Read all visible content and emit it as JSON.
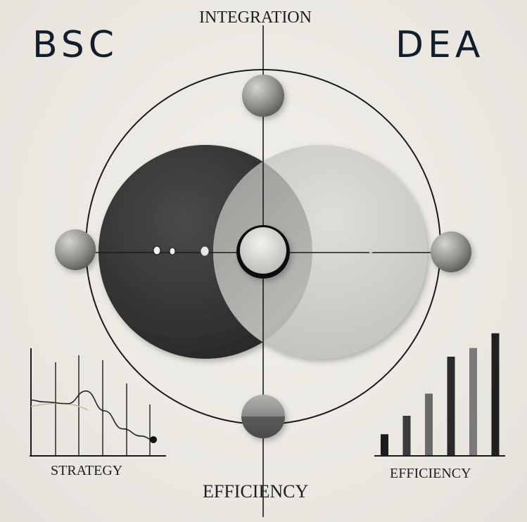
{
  "titles": {
    "left": "BSC",
    "right": "DEA"
  },
  "axis_labels": {
    "top": "INTEGRATION",
    "bottom": "EFFICIENCY"
  },
  "chart_labels": {
    "left": "STRATEGY",
    "right": "EFFICIENCY"
  },
  "left_chart": {
    "curve": [
      [
        0,
        0.62
      ],
      [
        0.1,
        0.6
      ],
      [
        0.3,
        0.58
      ],
      [
        0.45,
        0.72
      ],
      [
        0.6,
        0.5
      ],
      [
        0.75,
        0.3
      ],
      [
        0.9,
        0.22
      ],
      [
        1.0,
        0.18
      ]
    ]
  },
  "right_chart": {
    "bars": [
      0.17,
      0.32,
      0.5,
      0.8,
      0.87,
      0.99
    ],
    "colors": [
      "#1c1c1c",
      "#3a3a3a",
      "#6a6a6a",
      "#2a2a2a",
      "#7a7a7a",
      "#1f1f1f"
    ]
  },
  "colors": {
    "dark_circle": "#2e2e2e",
    "light_circle": "#cfcfcc",
    "line": "#1a1a1a",
    "title": "#141d2b"
  }
}
